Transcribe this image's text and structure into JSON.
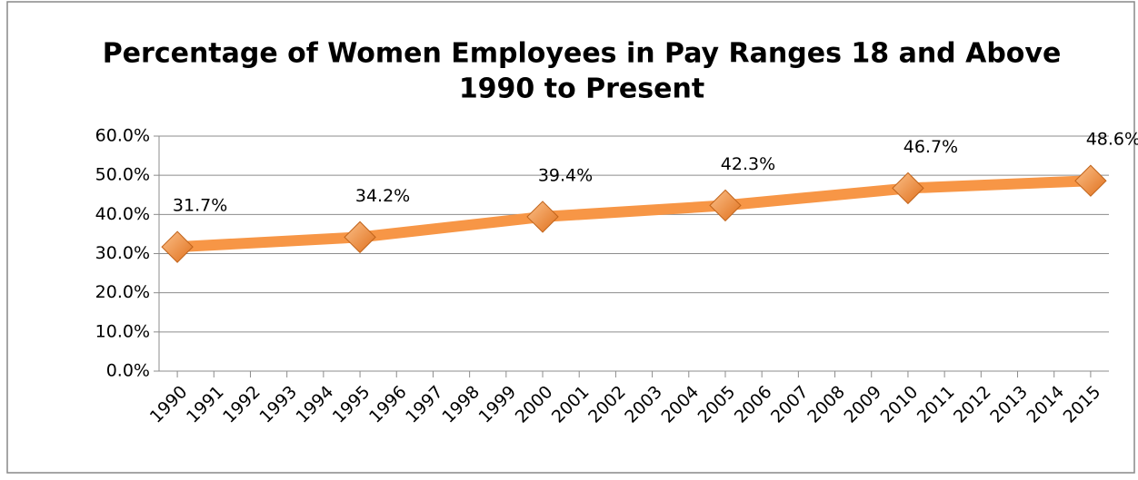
{
  "chart_data": {
    "type": "line",
    "title": "Percentage of Women Employees in Pay Ranges 18 and Above",
    "subtitle": "1990 to Present",
    "x": [
      1990,
      1995,
      2000,
      2005,
      2010,
      2015
    ],
    "series": [
      {
        "color": "#f79646",
        "values": [
          31.7,
          34.2,
          39.4,
          42.3,
          46.7,
          48.6
        ],
        "value_labels": [
          "31.7%",
          "34.2%",
          "39.4%",
          "42.3%",
          "46.7%",
          "48.6%"
        ]
      }
    ],
    "xlim": [
      1989.5,
      2015.5
    ],
    "xticks": [
      1990,
      1991,
      1992,
      1993,
      1994,
      1995,
      1996,
      1997,
      1998,
      1999,
      2000,
      2001,
      2002,
      2003,
      2004,
      2005,
      2006,
      2007,
      2008,
      2009,
      2010,
      2011,
      2012,
      2013,
      2014,
      2015
    ],
    "ylim": [
      0,
      60
    ],
    "yticks": [
      {
        "value": 0,
        "label": "0.0%"
      },
      {
        "value": 10,
        "label": "10.0%"
      },
      {
        "value": 20,
        "label": "20.0%"
      },
      {
        "value": 30,
        "label": "30.0%"
      },
      {
        "value": 40,
        "label": "40.0%"
      },
      {
        "value": 50,
        "label": "50.0%"
      },
      {
        "value": 60,
        "label": "60.0%"
      }
    ],
    "grid": true
  }
}
